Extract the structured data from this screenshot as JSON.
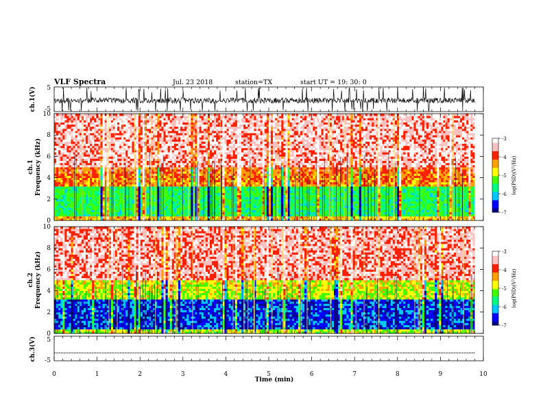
{
  "header": {
    "title": "VLF Spectra",
    "date": "Jul. 23 2018",
    "station": "station=TX",
    "start_ut": "start UT =  19: 30: 0"
  },
  "chart_data": {
    "type": "heatmap",
    "x_axis": {
      "label": "Time  (min)",
      "range": [
        0,
        10
      ],
      "ticks": [
        "0",
        "1",
        "2",
        "3",
        "4",
        "5",
        "6",
        "7",
        "8",
        "9",
        "10"
      ],
      "data_end": 9.8
    },
    "panels": [
      {
        "id": "ch1_waveform",
        "type": "line",
        "ylabel": "ch.1(V)",
        "ylim": [
          -5,
          5
        ],
        "yticks": [
          "5",
          "-5"
        ]
      },
      {
        "id": "ch1_spectrogram",
        "type": "heatmap",
        "ylabel": "ch.1\nFrequency  (kHz)",
        "ylim": [
          0,
          10
        ],
        "yticks": [
          "0",
          "2",
          "4",
          "6",
          "8",
          "10"
        ],
        "colorbar": {
          "label": "log(PSD)(V²/Hz)",
          "range": [
            -7,
            -3
          ],
          "ticks": [
            "-3",
            "-4",
            "-5",
            "-6",
            "-7"
          ]
        },
        "description_levels": {
          "0-0.4kHz": -4.5,
          "0.4-3.3kHz": -5.5,
          "3.3-5kHz": -4.3,
          "5-10kHz": -3.5
        }
      },
      {
        "id": "ch2_spectrogram",
        "type": "heatmap",
        "ylabel": "ch.2\nFrequency  (kHz)",
        "ylim": [
          0,
          10
        ],
        "yticks": [
          "0",
          "2",
          "4",
          "6",
          "8",
          "10"
        ],
        "colorbar": {
          "label": "log(PSD)(V²/Hz)",
          "range": [
            -7,
            -3
          ],
          "ticks": [
            "-3",
            "-4",
            "-5",
            "-6",
            "-7"
          ]
        },
        "description_levels": {
          "0-0.4kHz": -5.0,
          "0.4-3kHz": -6.5,
          "3-5kHz": -5.0,
          "5-10kHz": -3.6
        }
      },
      {
        "id": "ch3_waveform",
        "type": "line",
        "ylabel": "ch.3(V)",
        "ylim": [
          -5,
          5
        ],
        "yticks": [
          "5",
          "-5"
        ],
        "baseline": -1.8
      }
    ],
    "colormap": [
      "#000088",
      "#0000ff",
      "#00c8ff",
      "#00ff80",
      "#40ff00",
      "#ffff00",
      "#ffa000",
      "#ff2000",
      "#ffc0c0",
      "#ffffff"
    ]
  }
}
